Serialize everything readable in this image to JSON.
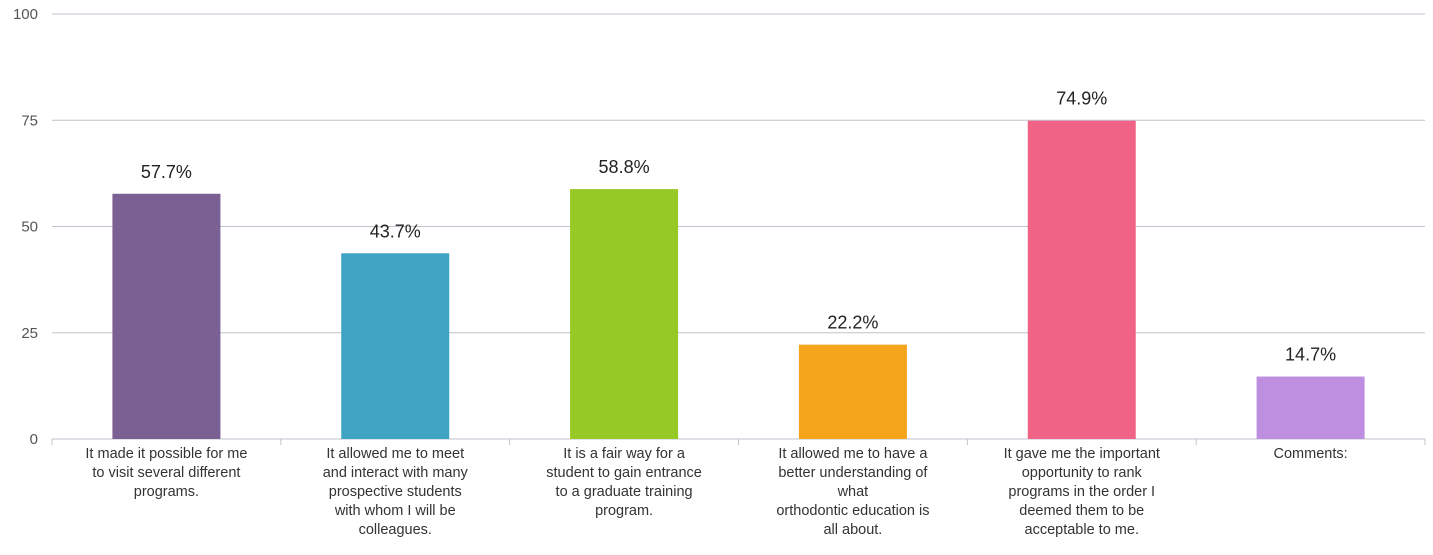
{
  "chart_data": {
    "type": "bar",
    "categories": [
      [
        "It made it possible for me",
        "to visit several different",
        "programs."
      ],
      [
        "It allowed me to meet",
        "and interact with many",
        "prospective students",
        "with whom I will be",
        "colleagues."
      ],
      [
        "It is a fair way for a",
        "student to gain entrance",
        "to a graduate training",
        "program."
      ],
      [
        "It allowed me to have a",
        "better understanding of",
        "what",
        "orthodontic education is",
        "all about."
      ],
      [
        "It gave me the important",
        "opportunity to rank",
        "programs in the order I",
        "deemed them to be",
        "acceptable to me."
      ],
      [
        "Comments:"
      ]
    ],
    "values": [
      57.7,
      43.7,
      58.8,
      22.2,
      74.9,
      14.7
    ],
    "data_labels": [
      "57.7%",
      "43.7%",
      "58.8%",
      "22.2%",
      "74.9%",
      "14.7%"
    ],
    "colors": [
      "#7b6093",
      "#3fa4c3",
      "#97c926",
      "#f4a51c",
      "#f06386",
      "#be8fe0"
    ],
    "yticks": [
      "0",
      "25",
      "50",
      "75",
      "100"
    ],
    "ylim": [
      0,
      100
    ],
    "grid": true,
    "grid_color": "#bcc3cc"
  }
}
